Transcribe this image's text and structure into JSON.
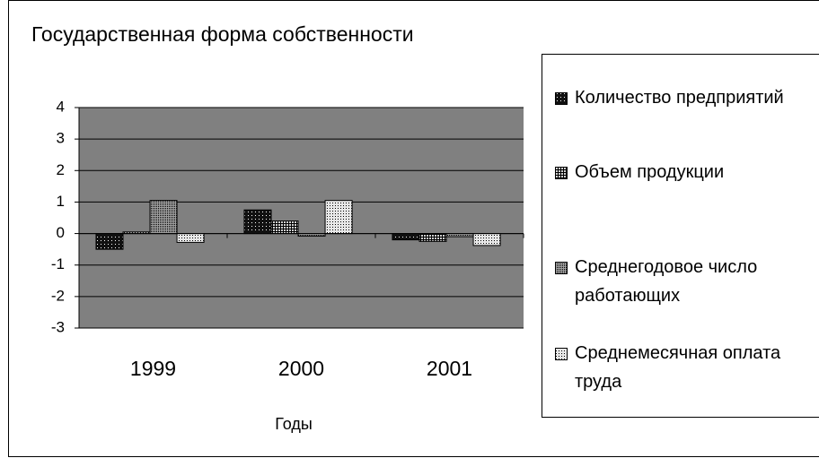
{
  "chart_data": {
    "type": "bar",
    "title": "Государственная форма собственности",
    "x_label": "Годы",
    "categories": [
      "1999",
      "2000",
      "2001"
    ],
    "series": [
      {
        "name": "Количество предприятий",
        "color": "#111111",
        "values": [
          -0.5,
          0.75,
          -0.2
        ]
      },
      {
        "name": "Объем продукции",
        "color": "#d0d0d0",
        "values": [
          0.05,
          0.4,
          -0.25
        ]
      },
      {
        "name": "Среднегодовое число работающих",
        "color": "#a0a0a0",
        "values": [
          1.05,
          -0.08,
          -0.1
        ]
      },
      {
        "name": "Среднемесячная оплата труда",
        "color": "#e8e8e8",
        "values": [
          -0.28,
          1.05,
          -0.38
        ]
      }
    ],
    "ylim": [
      -3,
      4
    ],
    "yticks": [
      -3,
      -2,
      -1,
      0,
      1,
      2,
      3,
      4
    ],
    "grid": true
  }
}
